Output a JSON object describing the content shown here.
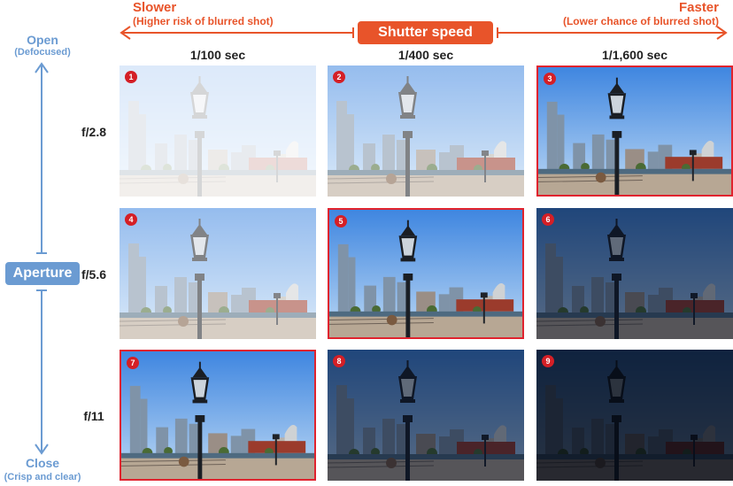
{
  "shutter": {
    "slow_title": "Slower",
    "slow_sub": "(Higher risk of blurred shot)",
    "fast_title": "Faster",
    "fast_sub": "(Lower chance of blurred shot)",
    "label": "Shutter speed",
    "columns": [
      "1/100 sec",
      "1/400 sec",
      "1/1,600 sec"
    ]
  },
  "aperture": {
    "label": "Aperture",
    "open_title": "Open",
    "open_sub": "(Defocused)",
    "close_title": "Close",
    "close_sub": "(Crisp and clear)",
    "rows": [
      "f/2.8",
      "f/5.6",
      "f/11"
    ]
  },
  "colors": {
    "shutter_accent": "#e8542a",
    "aperture_accent": "#6b9bd2",
    "highlight_border": "#e0232e",
    "badge": "#d41f26"
  },
  "photos": [
    {
      "number": "1",
      "exposure": "overexposed-heavy",
      "highlighted": false
    },
    {
      "number": "2",
      "exposure": "overexposed",
      "highlighted": false
    },
    {
      "number": "3",
      "exposure": "correct",
      "highlighted": true
    },
    {
      "number": "4",
      "exposure": "overexposed",
      "highlighted": false
    },
    {
      "number": "5",
      "exposure": "correct",
      "highlighted": true
    },
    {
      "number": "6",
      "exposure": "underexposed",
      "highlighted": false
    },
    {
      "number": "7",
      "exposure": "correct",
      "highlighted": true
    },
    {
      "number": "8",
      "exposure": "underexposed",
      "highlighted": false
    },
    {
      "number": "9",
      "exposure": "underexposed-heavy",
      "highlighted": false
    }
  ]
}
